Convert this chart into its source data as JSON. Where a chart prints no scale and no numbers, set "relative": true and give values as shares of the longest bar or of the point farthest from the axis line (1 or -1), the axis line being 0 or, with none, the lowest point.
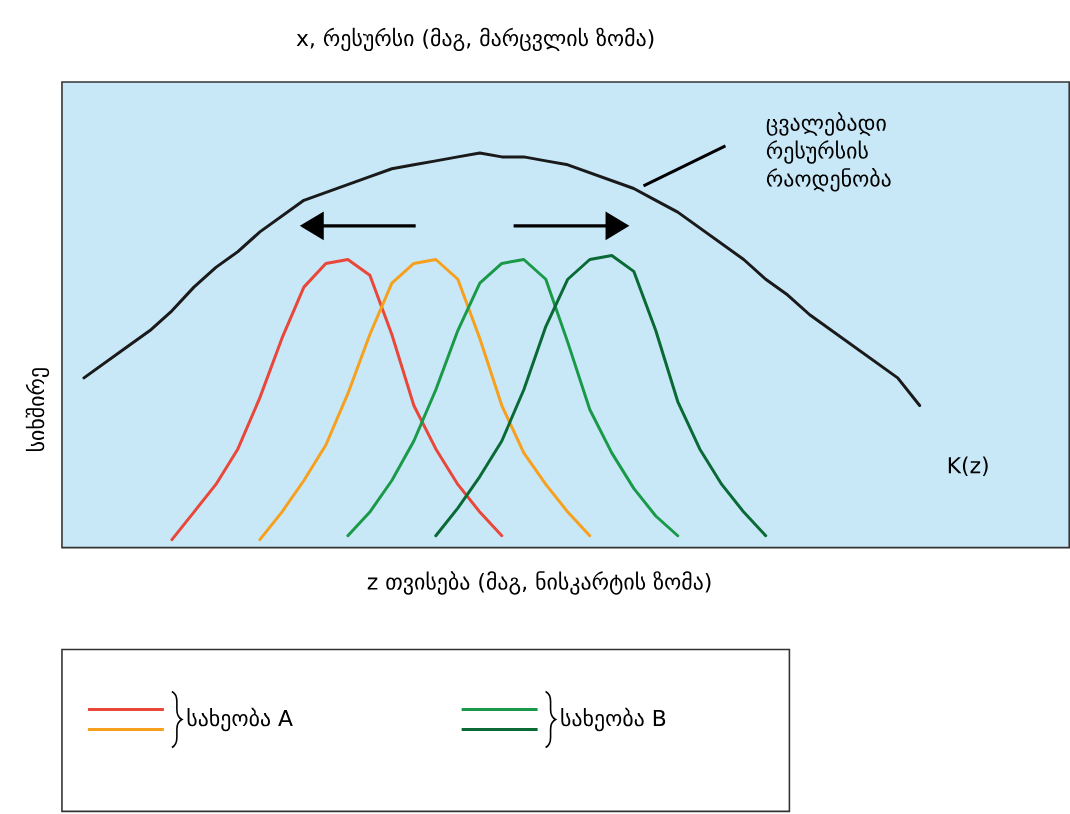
{
  "chart_data": {
    "type": "line",
    "relative": true,
    "legend": "bottom left",
    "title": "x, რესურსი (მაგ, მარცვლის ზომა)",
    "xlabel": "z თვისება (მაგ, ნისკარტის ზომა)",
    "ylabel": "სიხშირე",
    "annotations": [
      "ცვალებადი რესურსის რაოდენობა",
      "K(z)"
    ],
    "categories": [
      null,
      null,
      null,
      null,
      null,
      null,
      null,
      null,
      null,
      null,
      null,
      null,
      null,
      null,
      null,
      null,
      null,
      null,
      null,
      null,
      null,
      null,
      null,
      null,
      null,
      null,
      null,
      null,
      null,
      null,
      null,
      null,
      null,
      null,
      null,
      null,
      null,
      null,
      null,
      null,
      null,
      null,
      null,
      null,
      null,
      null
    ],
    "series": [
      {
        "color": "#1a1a1a",
        "values": [
          null,
          0.43,
          0.47,
          0.51,
          0.55,
          0.6,
          0.66,
          0.71,
          0.75,
          0.8,
          0.84,
          0.88,
          0.9,
          0.92,
          0.94,
          0.96,
          0.97,
          0.98,
          0.99,
          1,
          0.99,
          0.99,
          0.98,
          0.97,
          0.95,
          0.93,
          0.91,
          0.88,
          0.85,
          0.81,
          0.77,
          0.73,
          0.68,
          0.64,
          0.59,
          0.55,
          0.51,
          0.47,
          0.43,
          0.36,
          null,
          null,
          null,
          null,
          null,
          null
        ]
      },
      {
        "name": "სახეობა A",
        "color": "#e8473a",
        "values": [
          null,
          null,
          null,
          null,
          null,
          0.02,
          0.09,
          0.16,
          0.25,
          0.38,
          0.53,
          0.66,
          0.72,
          0.73,
          0.69,
          0.54,
          0.36,
          0.25,
          0.16,
          0.09,
          0.03,
          null,
          null,
          null,
          null,
          null,
          null,
          null,
          null,
          null,
          null,
          null,
          null,
          null,
          null,
          null,
          null,
          null,
          null,
          null,
          null,
          null,
          null,
          null,
          null,
          null
        ]
      },
      {
        "color": "#f7a01e",
        "values": [
          null,
          null,
          null,
          null,
          null,
          null,
          null,
          null,
          null,
          0.02,
          0.09,
          0.17,
          0.26,
          0.39,
          0.54,
          0.67,
          0.72,
          0.73,
          0.68,
          0.53,
          0.36,
          0.24,
          0.16,
          0.09,
          0.03,
          null,
          null,
          null,
          null,
          null,
          null,
          null,
          null,
          null,
          null,
          null,
          null,
          null,
          null,
          null,
          null,
          null,
          null,
          null,
          null,
          null
        ]
      },
      {
        "name": "სახეობა B",
        "color": "#1a9a48",
        "values": [
          null,
          null,
          null,
          null,
          null,
          null,
          null,
          null,
          null,
          null,
          null,
          null,
          null,
          0.03,
          0.09,
          0.17,
          0.27,
          0.4,
          0.55,
          0.67,
          0.72,
          0.73,
          0.68,
          0.52,
          0.35,
          0.24,
          0.15,
          0.08,
          0.03,
          null,
          null,
          null,
          null,
          null,
          null,
          null,
          null,
          null,
          null,
          null,
          null,
          null,
          null,
          null,
          null,
          null
        ]
      },
      {
        "color": "#0a6a35",
        "values": [
          null,
          null,
          null,
          null,
          null,
          null,
          null,
          null,
          null,
          null,
          null,
          null,
          null,
          null,
          null,
          null,
          null,
          0.03,
          0.1,
          0.18,
          0.27,
          0.4,
          0.56,
          0.68,
          0.73,
          0.74,
          0.7,
          0.55,
          0.37,
          0.25,
          0.16,
          0.09,
          0.03,
          null,
          null,
          null,
          null,
          null,
          null,
          null,
          null,
          null,
          null,
          null,
          null,
          null
        ]
      }
    ]
  }
}
